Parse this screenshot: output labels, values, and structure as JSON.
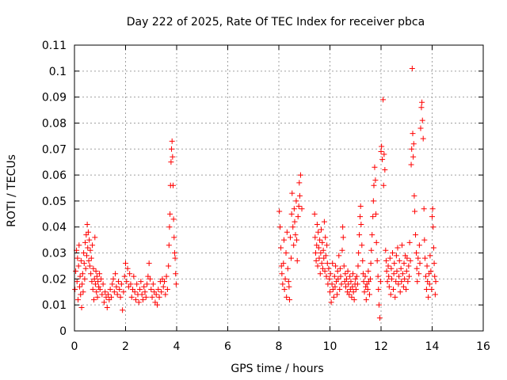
{
  "chart_data": {
    "type": "scatter",
    "title": "Day 222 of 2025, Rate Of TEC Index for receiver pbca",
    "xlabel": "GPS time / hours",
    "ylabel": "ROTI / TECUs",
    "xlim": [
      0,
      16
    ],
    "ylim": [
      0,
      0.11
    ],
    "x_ticks": [
      0,
      2,
      4,
      6,
      8,
      10,
      12,
      14,
      16
    ],
    "y_ticks": [
      0,
      0.01,
      0.02,
      0.03,
      0.04,
      0.05,
      0.06,
      0.07,
      0.08,
      0.09,
      0.1,
      0.11
    ],
    "grid": true,
    "marker": "+",
    "series_color": "#ff0000",
    "points": [
      [
        0.02,
        0.016
      ],
      [
        0.05,
        0.023
      ],
      [
        0.08,
        0.031
      ],
      [
        0.1,
        0.019
      ],
      [
        0.12,
        0.028
      ],
      [
        0.14,
        0.012
      ],
      [
        0.16,
        0.025
      ],
      [
        0.18,
        0.033
      ],
      [
        0.2,
        0.017
      ],
      [
        0.22,
        0.021
      ],
      [
        0.24,
        0.014
      ],
      [
        0.26,
        0.027
      ],
      [
        0.28,
        0.009
      ],
      [
        0.3,
        0.018
      ],
      [
        0.32,
        0.022
      ],
      [
        0.34,
        0.015
      ],
      [
        0.36,
        0.03
      ],
      [
        0.38,
        0.026
      ],
      [
        0.4,
        0.02
      ],
      [
        0.42,
        0.034
      ],
      [
        0.44,
        0.024
      ],
      [
        0.46,
        0.037
      ],
      [
        0.48,
        0.029
      ],
      [
        0.5,
        0.041
      ],
      [
        0.52,
        0.032
      ],
      [
        0.54,
        0.038
      ],
      [
        0.56,
        0.027
      ],
      [
        0.58,
        0.035
      ],
      [
        0.6,
        0.025
      ],
      [
        0.62,
        0.031
      ],
      [
        0.64,
        0.022
      ],
      [
        0.66,
        0.028
      ],
      [
        0.68,
        0.019
      ],
      [
        0.7,
        0.033
      ],
      [
        0.72,
        0.016
      ],
      [
        0.74,
        0.024
      ],
      [
        0.76,
        0.012
      ],
      [
        0.78,
        0.02
      ],
      [
        0.8,
        0.036
      ],
      [
        0.82,
        0.018
      ],
      [
        0.84,
        0.023
      ],
      [
        0.86,
        0.015
      ],
      [
        0.88,
        0.021
      ],
      [
        0.9,
        0.013
      ],
      [
        0.92,
        0.019
      ],
      [
        0.95,
        0.017
      ],
      [
        0.98,
        0.022
      ],
      [
        1.0,
        0.016
      ],
      [
        1.04,
        0.02
      ],
      [
        1.08,
        0.014
      ],
      [
        1.12,
        0.018
      ],
      [
        1.16,
        0.011
      ],
      [
        1.2,
        0.015
      ],
      [
        1.24,
        0.013
      ],
      [
        1.28,
        0.009
      ],
      [
        1.32,
        0.014
      ],
      [
        1.36,
        0.012
      ],
      [
        1.4,
        0.016
      ],
      [
        1.44,
        0.013
      ],
      [
        1.48,
        0.018
      ],
      [
        1.52,
        0.02
      ],
      [
        1.56,
        0.015
      ],
      [
        1.6,
        0.022
      ],
      [
        1.64,
        0.017
      ],
      [
        1.68,
        0.014
      ],
      [
        1.72,
        0.019
      ],
      [
        1.76,
        0.016
      ],
      [
        1.8,
        0.013
      ],
      [
        1.84,
        0.018
      ],
      [
        1.88,
        0.008
      ],
      [
        1.92,
        0.015
      ],
      [
        1.96,
        0.021
      ],
      [
        2.0,
        0.026
      ],
      [
        2.04,
        0.019
      ],
      [
        2.08,
        0.024
      ],
      [
        2.12,
        0.017
      ],
      [
        2.16,
        0.022
      ],
      [
        2.2,
        0.018
      ],
      [
        2.24,
        0.013
      ],
      [
        2.28,
        0.016
      ],
      [
        2.32,
        0.021
      ],
      [
        2.36,
        0.015
      ],
      [
        2.4,
        0.012
      ],
      [
        2.44,
        0.018
      ],
      [
        2.48,
        0.014
      ],
      [
        2.52,
        0.011
      ],
      [
        2.56,
        0.016
      ],
      [
        2.6,
        0.019
      ],
      [
        2.64,
        0.014
      ],
      [
        2.68,
        0.012
      ],
      [
        2.72,
        0.017
      ],
      [
        2.76,
        0.015
      ],
      [
        2.8,
        0.013
      ],
      [
        2.84,
        0.018
      ],
      [
        2.88,
        0.021
      ],
      [
        2.92,
        0.026
      ],
      [
        2.96,
        0.02
      ],
      [
        3.0,
        0.016
      ],
      [
        3.04,
        0.013
      ],
      [
        3.08,
        0.018
      ],
      [
        3.12,
        0.015
      ],
      [
        3.16,
        0.011
      ],
      [
        3.2,
        0.014
      ],
      [
        3.24,
        0.01
      ],
      [
        3.28,
        0.016
      ],
      [
        3.32,
        0.013
      ],
      [
        3.36,
        0.019
      ],
      [
        3.4,
        0.015
      ],
      [
        3.44,
        0.02
      ],
      [
        3.48,
        0.017
      ],
      [
        3.52,
        0.019
      ],
      [
        3.56,
        0.014
      ],
      [
        3.6,
        0.021
      ],
      [
        3.64,
        0.016
      ],
      [
        3.68,
        0.025
      ],
      [
        3.7,
        0.033
      ],
      [
        3.72,
        0.04
      ],
      [
        3.74,
        0.045
      ],
      [
        3.76,
        0.056
      ],
      [
        3.78,
        0.065
      ],
      [
        3.8,
        0.07
      ],
      [
        3.82,
        0.073
      ],
      [
        3.84,
        0.067
      ],
      [
        3.86,
        0.056
      ],
      [
        3.88,
        0.043
      ],
      [
        3.9,
        0.036
      ],
      [
        3.92,
        0.03
      ],
      [
        3.94,
        0.028
      ],
      [
        3.96,
        0.022
      ],
      [
        3.98,
        0.018
      ],
      [
        8.02,
        0.046
      ],
      [
        8.05,
        0.04
      ],
      [
        8.08,
        0.032
      ],
      [
        8.1,
        0.025
      ],
      [
        8.12,
        0.022
      ],
      [
        8.15,
        0.018
      ],
      [
        8.18,
        0.026
      ],
      [
        8.2,
        0.035
      ],
      [
        8.22,
        0.016
      ],
      [
        8.25,
        0.02
      ],
      [
        8.28,
        0.03
      ],
      [
        8.3,
        0.013
      ],
      [
        8.32,
        0.038
      ],
      [
        8.35,
        0.024
      ],
      [
        8.38,
        0.019
      ],
      [
        8.4,
        0.017
      ],
      [
        8.42,
        0.012
      ],
      [
        8.45,
        0.036
      ],
      [
        8.48,
        0.028
      ],
      [
        8.5,
        0.045
      ],
      [
        8.52,
        0.053
      ],
      [
        8.55,
        0.04
      ],
      [
        8.58,
        0.033
      ],
      [
        8.6,
        0.047
      ],
      [
        8.62,
        0.042
      ],
      [
        8.65,
        0.037
      ],
      [
        8.68,
        0.05
      ],
      [
        8.7,
        0.035
      ],
      [
        8.72,
        0.027
      ],
      [
        8.75,
        0.044
      ],
      [
        8.78,
        0.048
      ],
      [
        8.8,
        0.057
      ],
      [
        8.82,
        0.052
      ],
      [
        8.85,
        0.06
      ],
      [
        8.9,
        0.047
      ],
      [
        9.4,
        0.045
      ],
      [
        9.42,
        0.036
      ],
      [
        9.44,
        0.03
      ],
      [
        9.46,
        0.027
      ],
      [
        9.48,
        0.033
      ],
      [
        9.5,
        0.041
      ],
      [
        9.52,
        0.025
      ],
      [
        9.54,
        0.038
      ],
      [
        9.56,
        0.032
      ],
      [
        9.58,
        0.028
      ],
      [
        9.6,
        0.035
      ],
      [
        9.62,
        0.022
      ],
      [
        9.64,
        0.03
      ],
      [
        9.66,
        0.039
      ],
      [
        9.68,
        0.026
      ],
      [
        9.7,
        0.034
      ],
      [
        9.72,
        0.024
      ],
      [
        9.74,
        0.031
      ],
      [
        9.76,
        0.028
      ],
      [
        9.78,
        0.042
      ],
      [
        9.8,
        0.023
      ],
      [
        9.82,
        0.036
      ],
      [
        9.84,
        0.029
      ],
      [
        9.86,
        0.021
      ],
      [
        9.88,
        0.033
      ],
      [
        9.9,
        0.026
      ],
      [
        9.92,
        0.018
      ],
      [
        9.95,
        0.024
      ],
      [
        9.98,
        0.02
      ],
      [
        10.0,
        0.015
      ],
      [
        10.02,
        0.022
      ],
      [
        10.05,
        0.011
      ],
      [
        10.08,
        0.018
      ],
      [
        10.1,
        0.026
      ],
      [
        10.12,
        0.016
      ],
      [
        10.15,
        0.013
      ],
      [
        10.18,
        0.021
      ],
      [
        10.2,
        0.017
      ],
      [
        10.22,
        0.025
      ],
      [
        10.25,
        0.019
      ],
      [
        10.28,
        0.014
      ],
      [
        10.3,
        0.023
      ],
      [
        10.32,
        0.02
      ],
      [
        10.35,
        0.029
      ],
      [
        10.38,
        0.016
      ],
      [
        10.4,
        0.024
      ],
      [
        10.42,
        0.021
      ],
      [
        10.45,
        0.018
      ],
      [
        10.48,
        0.031
      ],
      [
        10.5,
        0.04
      ],
      [
        10.52,
        0.036
      ],
      [
        10.55,
        0.025
      ],
      [
        10.58,
        0.019
      ],
      [
        10.6,
        0.022
      ],
      [
        10.62,
        0.017
      ],
      [
        10.65,
        0.02
      ],
      [
        10.68,
        0.015
      ],
      [
        10.7,
        0.023
      ],
      [
        10.72,
        0.018
      ],
      [
        10.75,
        0.014
      ],
      [
        10.78,
        0.021
      ],
      [
        10.8,
        0.016
      ],
      [
        10.82,
        0.019
      ],
      [
        10.85,
        0.013
      ],
      [
        10.88,
        0.017
      ],
      [
        10.9,
        0.022
      ],
      [
        10.92,
        0.015
      ],
      [
        10.95,
        0.012
      ],
      [
        10.98,
        0.018
      ],
      [
        11.0,
        0.02
      ],
      [
        11.02,
        0.016
      ],
      [
        11.05,
        0.021
      ],
      [
        11.08,
        0.018
      ],
      [
        11.1,
        0.025
      ],
      [
        11.12,
        0.03
      ],
      [
        11.15,
        0.037
      ],
      [
        11.18,
        0.044
      ],
      [
        11.2,
        0.048
      ],
      [
        11.22,
        0.041
      ],
      [
        11.25,
        0.033
      ],
      [
        11.28,
        0.027
      ],
      [
        11.3,
        0.022
      ],
      [
        11.32,
        0.019
      ],
      [
        11.35,
        0.015
      ],
      [
        11.38,
        0.021
      ],
      [
        11.4,
        0.017
      ],
      [
        11.42,
        0.012
      ],
      [
        11.45,
        0.018
      ],
      [
        11.48,
        0.016
      ],
      [
        11.5,
        0.023
      ],
      [
        11.52,
        0.019
      ],
      [
        11.55,
        0.014
      ],
      [
        11.58,
        0.02
      ],
      [
        11.6,
        0.026
      ],
      [
        11.62,
        0.031
      ],
      [
        11.65,
        0.037
      ],
      [
        11.68,
        0.044
      ],
      [
        11.7,
        0.05
      ],
      [
        11.72,
        0.056
      ],
      [
        11.75,
        0.063
      ],
      [
        11.78,
        0.058
      ],
      [
        11.8,
        0.045
      ],
      [
        11.82,
        0.034
      ],
      [
        11.85,
        0.027
      ],
      [
        11.88,
        0.021
      ],
      [
        11.9,
        0.016
      ],
      [
        11.92,
        0.01
      ],
      [
        11.95,
        0.005
      ],
      [
        11.98,
        0.019
      ],
      [
        12.0,
        0.069
      ],
      [
        12.02,
        0.071
      ],
      [
        12.05,
        0.066
      ],
      [
        12.08,
        0.089
      ],
      [
        12.1,
        0.056
      ],
      [
        12.12,
        0.068
      ],
      [
        12.15,
        0.062
      ],
      [
        12.18,
        0.031
      ],
      [
        12.2,
        0.027
      ],
      [
        12.22,
        0.023
      ],
      [
        12.25,
        0.019
      ],
      [
        12.28,
        0.025
      ],
      [
        12.3,
        0.021
      ],
      [
        12.32,
        0.017
      ],
      [
        12.35,
        0.028
      ],
      [
        12.38,
        0.014
      ],
      [
        12.4,
        0.024
      ],
      [
        12.42,
        0.02
      ],
      [
        12.45,
        0.03
      ],
      [
        12.48,
        0.016
      ],
      [
        12.5,
        0.022
      ],
      [
        12.52,
        0.026
      ],
      [
        12.55,
        0.013
      ],
      [
        12.58,
        0.019
      ],
      [
        12.6,
        0.029
      ],
      [
        12.62,
        0.023
      ],
      [
        12.65,
        0.032
      ],
      [
        12.68,
        0.018
      ],
      [
        12.7,
        0.021
      ],
      [
        12.72,
        0.027
      ],
      [
        12.75,
        0.015
      ],
      [
        12.78,
        0.024
      ],
      [
        12.8,
        0.019
      ],
      [
        12.82,
        0.033
      ],
      [
        12.85,
        0.022
      ],
      [
        12.88,
        0.017
      ],
      [
        12.9,
        0.026
      ],
      [
        12.92,
        0.02
      ],
      [
        12.95,
        0.029
      ],
      [
        12.98,
        0.016
      ],
      [
        13.0,
        0.023
      ],
      [
        13.02,
        0.028
      ],
      [
        13.05,
        0.019
      ],
      [
        13.08,
        0.025
      ],
      [
        13.1,
        0.021
      ],
      [
        13.12,
        0.034
      ],
      [
        13.15,
        0.027
      ],
      [
        13.18,
        0.064
      ],
      [
        13.2,
        0.07
      ],
      [
        13.22,
        0.101
      ],
      [
        13.24,
        0.076
      ],
      [
        13.26,
        0.067
      ],
      [
        13.28,
        0.072
      ],
      [
        13.3,
        0.052
      ],
      [
        13.32,
        0.046
      ],
      [
        13.35,
        0.037
      ],
      [
        13.38,
        0.03
      ],
      [
        13.4,
        0.024
      ],
      [
        13.42,
        0.019
      ],
      [
        13.45,
        0.028
      ],
      [
        13.48,
        0.022
      ],
      [
        13.5,
        0.033
      ],
      [
        13.52,
        0.026
      ],
      [
        13.55,
        0.078
      ],
      [
        13.58,
        0.086
      ],
      [
        13.6,
        0.088
      ],
      [
        13.62,
        0.081
      ],
      [
        13.65,
        0.074
      ],
      [
        13.68,
        0.047
      ],
      [
        13.7,
        0.035
      ],
      [
        13.72,
        0.028
      ],
      [
        13.75,
        0.021
      ],
      [
        13.78,
        0.016
      ],
      [
        13.8,
        0.025
      ],
      [
        13.82,
        0.019
      ],
      [
        13.85,
        0.013
      ],
      [
        13.88,
        0.022
      ],
      [
        13.9,
        0.018
      ],
      [
        13.92,
        0.029
      ],
      [
        13.95,
        0.023
      ],
      [
        13.98,
        0.016
      ],
      [
        14.0,
        0.044
      ],
      [
        14.02,
        0.047
      ],
      [
        14.04,
        0.04
      ],
      [
        14.06,
        0.032
      ],
      [
        14.08,
        0.026
      ],
      [
        14.1,
        0.021
      ],
      [
        14.12,
        0.014
      ],
      [
        14.14,
        0.019
      ]
    ]
  }
}
